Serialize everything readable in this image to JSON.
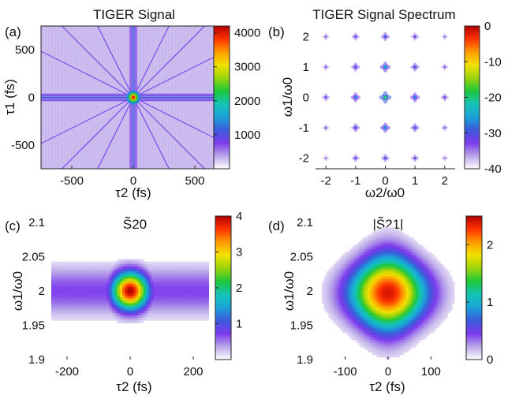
{
  "figure": {
    "colormap": [
      "#ffffff",
      "#b9a5e8",
      "#7c3aed",
      "#3b5bdb",
      "#1aa3d9",
      "#14c4b5",
      "#1ec83a",
      "#9bd40b",
      "#f2e200",
      "#ff9b00",
      "#ff3300",
      "#b30000"
    ]
  },
  "chart_data": [
    {
      "panel": "(a)",
      "type": "heatmap",
      "title": "TIGER Signal",
      "xlabel": "τ2 (fs)",
      "ylabel": "τ1 (fs)",
      "xlim": [
        -750,
        750
      ],
      "ylim": [
        -750,
        750
      ],
      "xticks": [
        -500,
        0,
        500
      ],
      "yticks": [
        -500,
        0,
        500
      ],
      "xtick_labels": [
        "-500",
        "0",
        "500"
      ],
      "ytick_labels": [
        "-500",
        "0",
        "500"
      ],
      "colorbar": {
        "range": [
          0,
          4200
        ],
        "ticks": [
          1000,
          2000,
          3000,
          4000
        ],
        "tick_labels": [
          "1000",
          "2000",
          "3000",
          "4000"
        ]
      },
      "background_value": 300,
      "features": [
        {
          "kind": "cross",
          "value": 1100
        },
        {
          "kind": "diagonal-lines",
          "value": 800
        },
        {
          "kind": "center-peak",
          "value": 4000
        }
      ]
    },
    {
      "panel": "(b)",
      "type": "scatter",
      "title": "TIGER Signal Spectrum",
      "xlabel": "ω2/ω0",
      "ylabel": "ω1/ω0",
      "xlim": [
        -2.35,
        2.35
      ],
      "ylim": [
        -2.35,
        2.35
      ],
      "xticks": [
        -2,
        -1,
        0,
        1,
        2
      ],
      "yticks": [
        -2,
        -1,
        0,
        1,
        2
      ],
      "xtick_labels": [
        "-2",
        "-1",
        "0",
        "1",
        "2"
      ],
      "ytick_labels": [
        "-2",
        "-1",
        "0",
        "1",
        "2"
      ],
      "colorbar": {
        "range": [
          -40,
          0
        ],
        "ticks": [
          0,
          -10,
          -20,
          -30,
          -40
        ],
        "tick_labels": [
          "0",
          "-10",
          "-20",
          "-30",
          "-40"
        ]
      },
      "peaks": [
        {
          "x": -2,
          "y": 2,
          "db": -34
        },
        {
          "x": -1,
          "y": 2,
          "db": -32
        },
        {
          "x": 0,
          "y": 2,
          "db": -30
        },
        {
          "x": 1,
          "y": 2,
          "db": -32
        },
        {
          "x": 2,
          "y": 2,
          "db": -35
        },
        {
          "x": -2,
          "y": 1,
          "db": -34
        },
        {
          "x": -1,
          "y": 1,
          "db": -30
        },
        {
          "x": 0,
          "y": 1,
          "db": -26
        },
        {
          "x": 1,
          "y": 1,
          "db": -30
        },
        {
          "x": 2,
          "y": 1,
          "db": -34
        },
        {
          "x": -2,
          "y": 0,
          "db": -32
        },
        {
          "x": -1,
          "y": 0,
          "db": -28
        },
        {
          "x": 0,
          "y": 0,
          "db": -22
        },
        {
          "x": 1,
          "y": 0,
          "db": -28
        },
        {
          "x": 2,
          "y": 0,
          "db": -32
        },
        {
          "x": -2,
          "y": -1,
          "db": -34
        },
        {
          "x": -1,
          "y": -1,
          "db": -30
        },
        {
          "x": 0,
          "y": -1,
          "db": -27
        },
        {
          "x": 1,
          "y": -1,
          "db": -30
        },
        {
          "x": 2,
          "y": -1,
          "db": -34
        },
        {
          "x": -2,
          "y": -2,
          "db": -35
        },
        {
          "x": -1,
          "y": -2,
          "db": -32
        },
        {
          "x": 0,
          "y": -2,
          "db": -31
        },
        {
          "x": 1,
          "y": -2,
          "db": -32
        },
        {
          "x": 2,
          "y": -2,
          "db": -35
        }
      ]
    },
    {
      "panel": "(c)",
      "type": "heatmap",
      "title": "S̃20",
      "xlabel": "τ2 (fs)",
      "ylabel": "ω1/ω0",
      "xlim": [
        -250,
        250
      ],
      "ylim": [
        1.9,
        2.1
      ],
      "xticks": [
        -200,
        0,
        200
      ],
      "yticks": [
        1.9,
        1.95,
        2,
        2.05,
        2.1
      ],
      "xtick_labels": [
        "-200",
        "0",
        "200"
      ],
      "ytick_labels": [
        "1.9",
        "1.95",
        "2",
        "2.05",
        "2.1"
      ],
      "colorbar": {
        "range": [
          0,
          4
        ],
        "ticks": [
          1,
          2,
          3,
          4
        ],
        "tick_labels": [
          "1",
          "2",
          "3",
          "4"
        ]
      },
      "peak": {
        "x": 0,
        "y": 2.0,
        "value": 4.0,
        "sigma_x": 40,
        "sigma_y": 0.019
      },
      "band": {
        "y": 2.0,
        "value": 0.7,
        "sigma_y": 0.024
      }
    },
    {
      "panel": "(d)",
      "type": "heatmap",
      "title": "|S̃21|",
      "xlabel": "τ2 (fs)",
      "ylabel": "ω1/ω0",
      "xlim": [
        -160,
        160
      ],
      "ylim": [
        1.9,
        2.1
      ],
      "xticks": [
        -100,
        0,
        100
      ],
      "yticks": [
        1.9,
        1.95,
        2,
        2.05,
        2.1
      ],
      "xtick_labels": [
        "-100",
        "0",
        "100"
      ],
      "ytick_labels": [
        "1.9",
        "1.95",
        "2",
        "2.05",
        "2.1"
      ],
      "colorbar": {
        "range": [
          0,
          2.5
        ],
        "ticks": [
          0,
          1,
          2
        ],
        "tick_labels": [
          "0",
          "1",
          "2"
        ]
      },
      "peak": {
        "x": 0,
        "y": 1.997,
        "value": 2.4,
        "sigma_x": 62,
        "sigma_y": 0.028
      }
    }
  ]
}
